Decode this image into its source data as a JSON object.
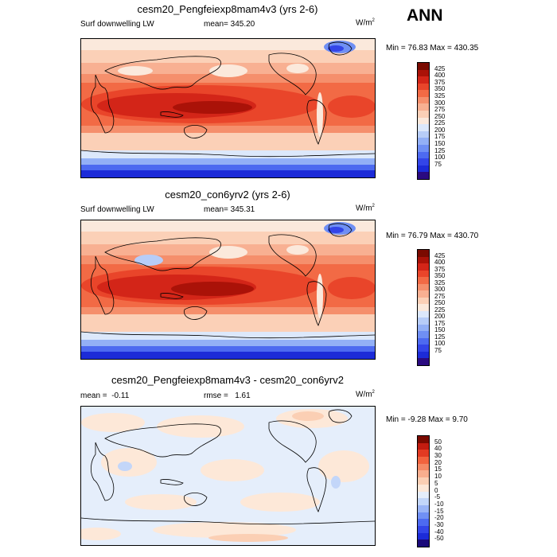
{
  "season": "ANN",
  "colormaps": {
    "abs": [
      "#2a0a80",
      "#1c2bd8",
      "#3345e8",
      "#4d6af0",
      "#6f8ff4",
      "#93b0f6",
      "#b7cdf8",
      "#dce8fb",
      "#fbe9dc",
      "#fbd0b7",
      "#f8b092",
      "#f58f6c",
      "#f26a45",
      "#e9452a",
      "#d32518",
      "#aa1208",
      "#7a0a00"
    ],
    "diff": [
      "#1a0a7a",
      "#1c2bd8",
      "#3345e8",
      "#4d6af0",
      "#7090f4",
      "#9ab4f6",
      "#c3d6f9",
      "#e5eefb",
      "#fde8d8",
      "#fbcfb4",
      "#f8ae8e",
      "#f58a66",
      "#f2633e",
      "#e23a22",
      "#c21c10",
      "#7a0a00"
    ]
  },
  "panels": [
    {
      "title": "cesm20_Pengfeiexp8mam4v3 (yrs 2-6)",
      "variable": "Surf downwelling LW",
      "mean_label": "mean=",
      "mean": "345.20",
      "units": "W/m",
      "units_sup": "2",
      "minmax": "Min =  76.83 Max = 430.35",
      "levels": [
        "425",
        "400",
        "375",
        "350",
        "325",
        "300",
        "275",
        "250",
        "225",
        "200",
        "175",
        "150",
        "125",
        "100",
        "75"
      ],
      "kind": "abs"
    },
    {
      "title": "cesm20_con6yrv2 (yrs 2-6)",
      "variable": "Surf downwelling LW",
      "mean_label": "mean=",
      "mean": "345.31",
      "units": "W/m",
      "units_sup": "2",
      "minmax": "Min =  76.79 Max = 430.70",
      "levels": [
        "425",
        "400",
        "375",
        "350",
        "325",
        "300",
        "275",
        "250",
        "225",
        "200",
        "175",
        "150",
        "125",
        "100",
        "75"
      ],
      "kind": "abs"
    },
    {
      "title": "cesm20_Pengfeiexp8mam4v3 - cesm20_con6yrv2",
      "mean_label": "mean =",
      "mean": "-0.11",
      "rmse_label": "rmse =",
      "rmse": "1.61",
      "units": "W/m",
      "units_sup": "2",
      "minmax": "Min =  -9.28 Max =   9.70",
      "levels": [
        "50",
        "40",
        "30",
        "20",
        "15",
        "10",
        "5",
        "0",
        "-5",
        "-10",
        "-15",
        "-20",
        "-30",
        "-40",
        "-50"
      ],
      "kind": "diff"
    }
  ]
}
